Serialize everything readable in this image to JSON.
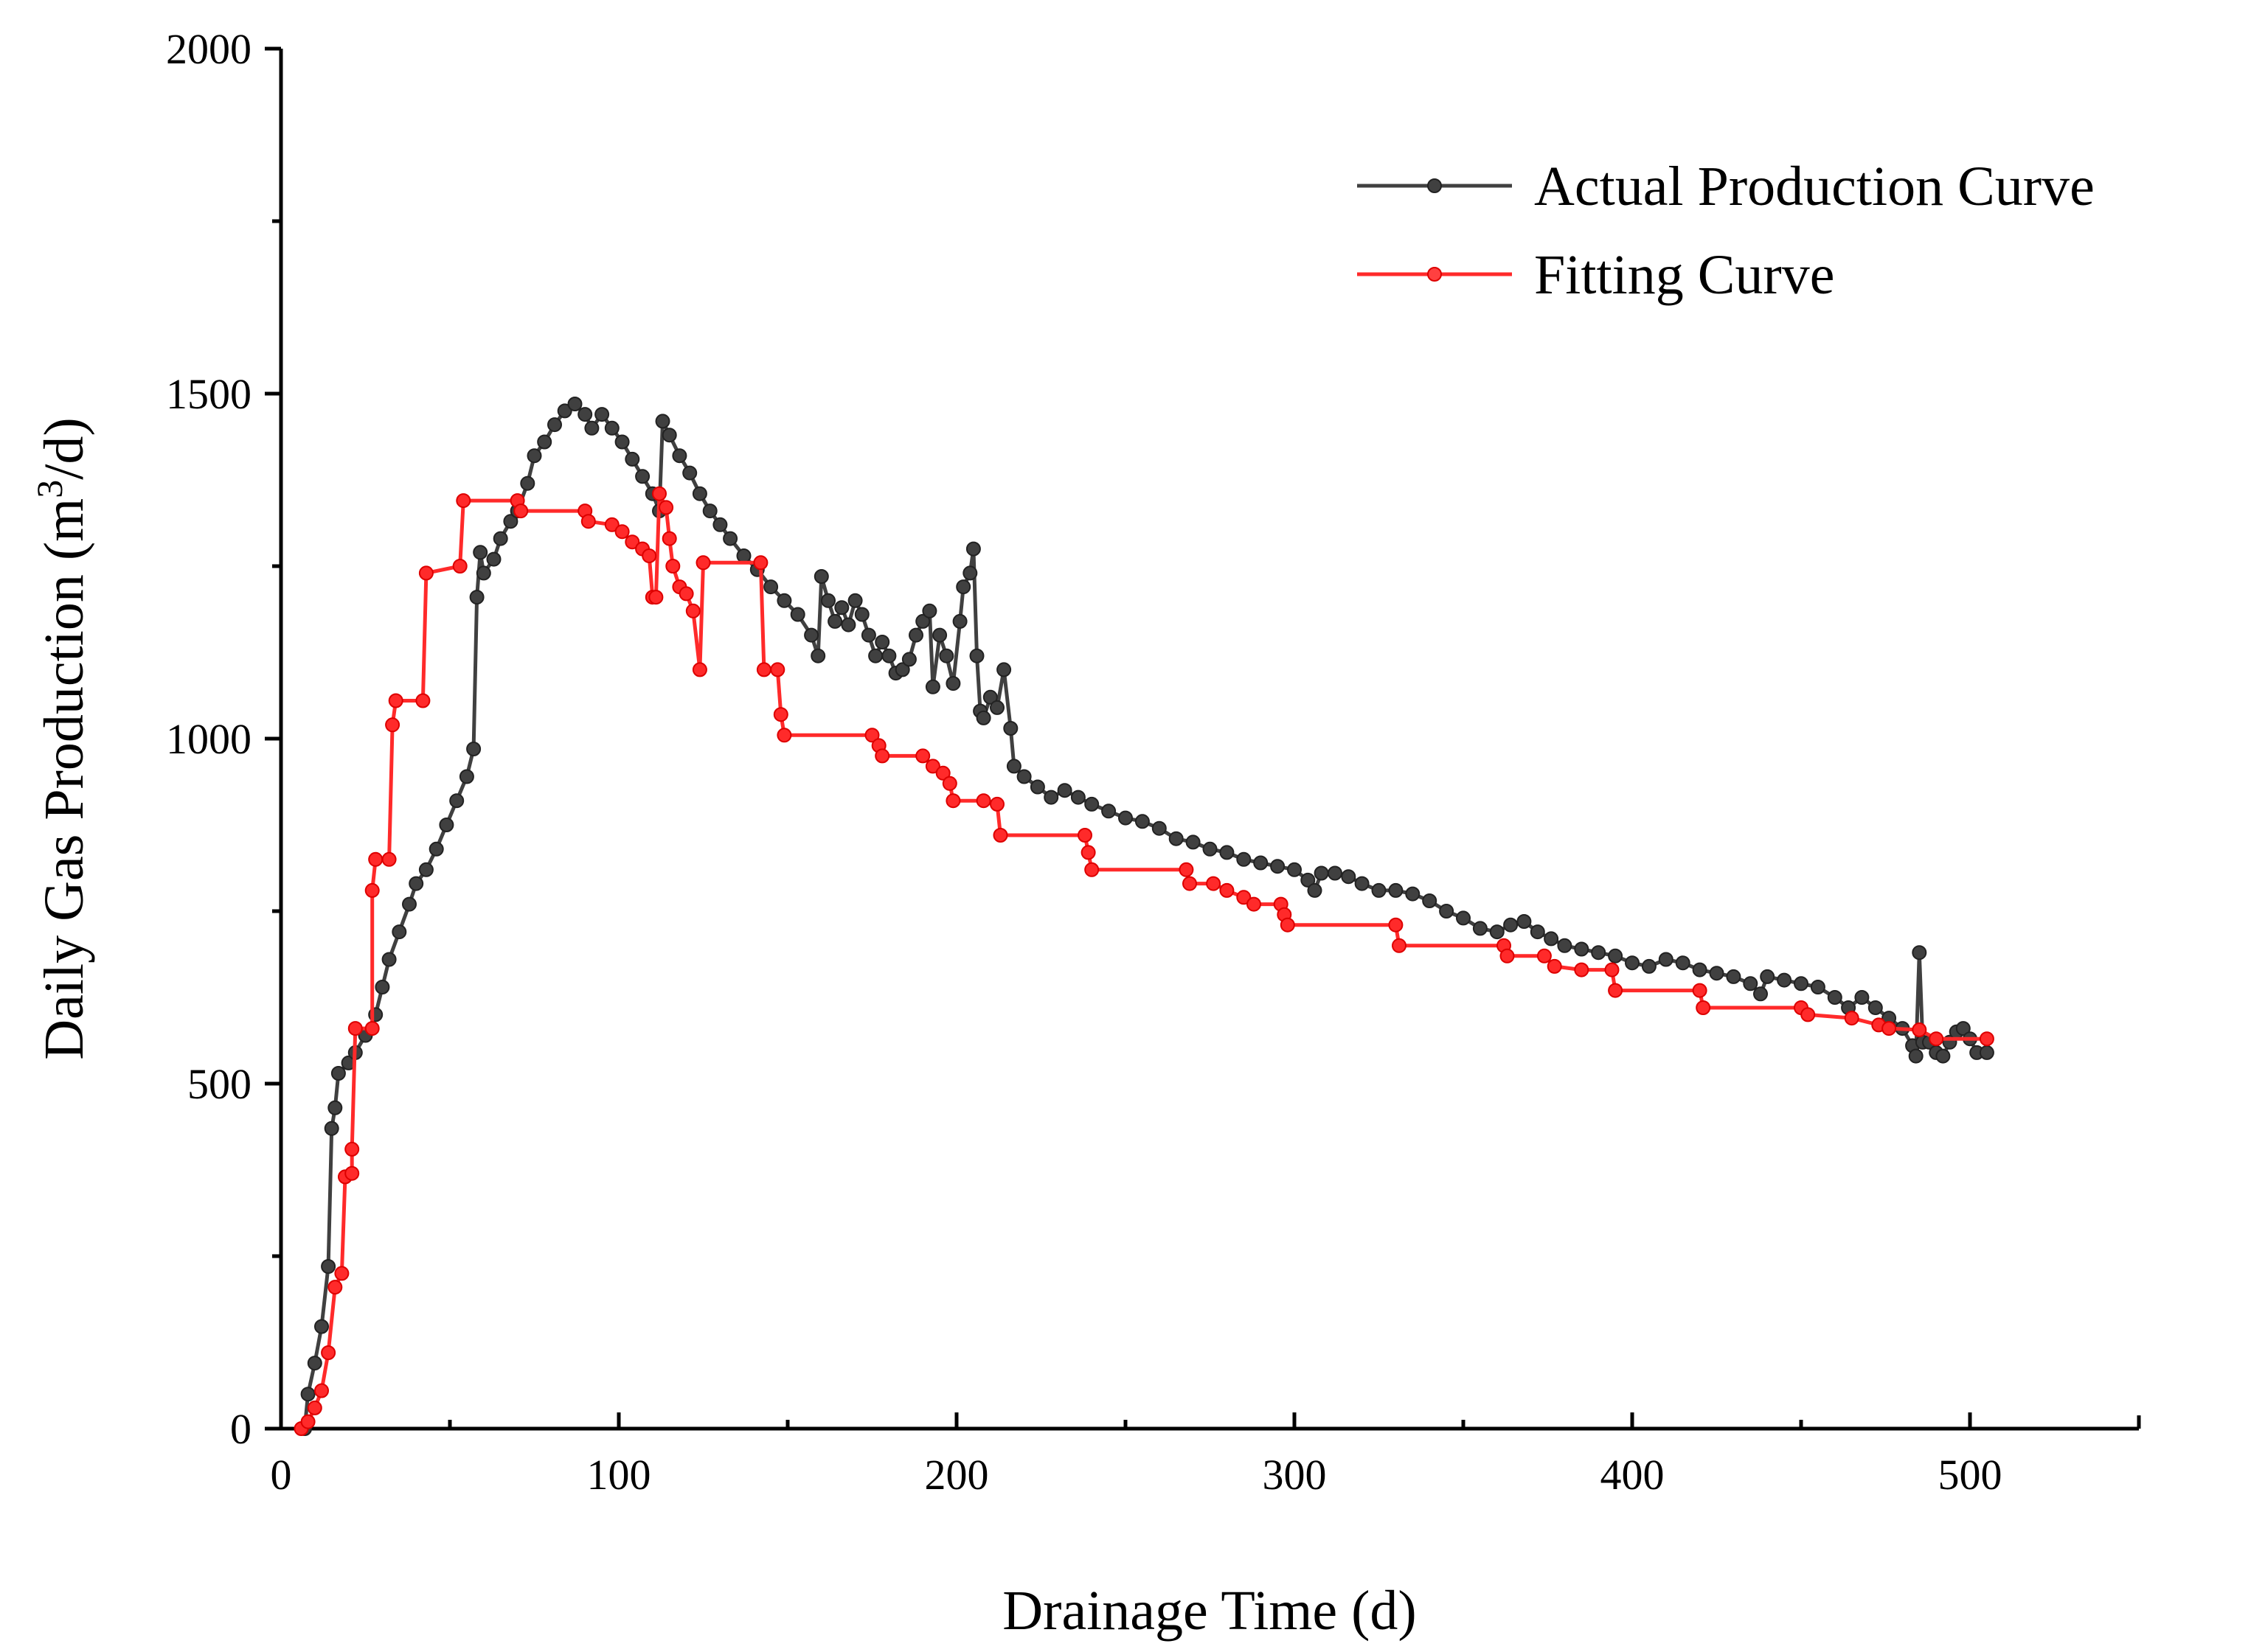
{
  "chart_data": {
    "type": "line",
    "xlabel": "Drainage Time (d)",
    "ylabel_prefix": "Daily Gas Production (m",
    "ylabel_sup": "3",
    "ylabel_suffix": "/d)",
    "xlim": [
      0,
      550
    ],
    "ylim": [
      0,
      2000
    ],
    "xticks": [
      0,
      100,
      200,
      300,
      400,
      500
    ],
    "xtick_labels": [
      "0",
      "100",
      "200",
      "300",
      "400",
      "500"
    ],
    "yticks": [
      0,
      500,
      1000,
      1500,
      2000
    ],
    "ytick_labels": [
      "0",
      "500",
      "1000",
      "1500",
      "2000"
    ],
    "legend_position": "top-right",
    "series": [
      {
        "name": "Actual Production Curve",
        "color": "#404040",
        "points": [
          [
            7,
            0
          ],
          [
            8,
            50
          ],
          [
            10,
            95
          ],
          [
            12,
            148
          ],
          [
            14,
            235
          ],
          [
            15,
            435
          ],
          [
            16,
            465
          ],
          [
            17,
            515
          ],
          [
            20,
            530
          ],
          [
            22,
            545
          ],
          [
            25,
            570
          ],
          [
            28,
            600
          ],
          [
            30,
            640
          ],
          [
            32,
            680
          ],
          [
            35,
            720
          ],
          [
            38,
            760
          ],
          [
            40,
            790
          ],
          [
            43,
            810
          ],
          [
            46,
            840
          ],
          [
            49,
            875
          ],
          [
            52,
            910
          ],
          [
            55,
            945
          ],
          [
            57,
            985
          ],
          [
            58,
            1205
          ],
          [
            59,
            1270
          ],
          [
            60,
            1240
          ],
          [
            63,
            1260
          ],
          [
            65,
            1290
          ],
          [
            68,
            1315
          ],
          [
            70,
            1330
          ],
          [
            73,
            1370
          ],
          [
            75,
            1410
          ],
          [
            78,
            1430
          ],
          [
            81,
            1455
          ],
          [
            84,
            1475
          ],
          [
            87,
            1485
          ],
          [
            90,
            1470
          ],
          [
            92,
            1450
          ],
          [
            95,
            1470
          ],
          [
            98,
            1450
          ],
          [
            101,
            1430
          ],
          [
            104,
            1405
          ],
          [
            107,
            1380
          ],
          [
            110,
            1355
          ],
          [
            112,
            1330
          ],
          [
            113,
            1460
          ],
          [
            115,
            1440
          ],
          [
            118,
            1410
          ],
          [
            121,
            1385
          ],
          [
            124,
            1355
          ],
          [
            127,
            1330
          ],
          [
            130,
            1310
          ],
          [
            133,
            1290
          ],
          [
            137,
            1265
          ],
          [
            141,
            1245
          ],
          [
            145,
            1220
          ],
          [
            149,
            1200
          ],
          [
            153,
            1180
          ],
          [
            157,
            1150
          ],
          [
            159,
            1120
          ],
          [
            160,
            1235
          ],
          [
            162,
            1200
          ],
          [
            164,
            1170
          ],
          [
            166,
            1190
          ],
          [
            168,
            1165
          ],
          [
            170,
            1200
          ],
          [
            172,
            1180
          ],
          [
            174,
            1150
          ],
          [
            176,
            1120
          ],
          [
            178,
            1140
          ],
          [
            180,
            1120
          ],
          [
            182,
            1095
          ],
          [
            184,
            1100
          ],
          [
            186,
            1115
          ],
          [
            188,
            1150
          ],
          [
            190,
            1170
          ],
          [
            192,
            1185
          ],
          [
            193,
            1075
          ],
          [
            195,
            1150
          ],
          [
            197,
            1120
          ],
          [
            199,
            1080
          ],
          [
            201,
            1170
          ],
          [
            202,
            1220
          ],
          [
            204,
            1240
          ],
          [
            205,
            1275
          ],
          [
            206,
            1120
          ],
          [
            207,
            1040
          ],
          [
            208,
            1030
          ],
          [
            210,
            1060
          ],
          [
            212,
            1045
          ],
          [
            214,
            1100
          ],
          [
            216,
            1015
          ],
          [
            217,
            960
          ],
          [
            220,
            945
          ],
          [
            224,
            930
          ],
          [
            228,
            915
          ],
          [
            232,
            925
          ],
          [
            236,
            915
          ],
          [
            240,
            905
          ],
          [
            245,
            895
          ],
          [
            250,
            885
          ],
          [
            255,
            880
          ],
          [
            260,
            870
          ],
          [
            265,
            855
          ],
          [
            270,
            850
          ],
          [
            275,
            840
          ],
          [
            280,
            835
          ],
          [
            285,
            825
          ],
          [
            290,
            820
          ],
          [
            295,
            815
          ],
          [
            300,
            810
          ],
          [
            304,
            795
          ],
          [
            306,
            780
          ],
          [
            308,
            805
          ],
          [
            312,
            805
          ],
          [
            316,
            800
          ],
          [
            320,
            790
          ],
          [
            325,
            780
          ],
          [
            330,
            780
          ],
          [
            335,
            775
          ],
          [
            340,
            765
          ],
          [
            345,
            750
          ],
          [
            350,
            740
          ],
          [
            355,
            725
          ],
          [
            360,
            720
          ],
          [
            364,
            730
          ],
          [
            368,
            735
          ],
          [
            372,
            720
          ],
          [
            376,
            710
          ],
          [
            380,
            700
          ],
          [
            385,
            695
          ],
          [
            390,
            690
          ],
          [
            395,
            685
          ],
          [
            400,
            675
          ],
          [
            405,
            670
          ],
          [
            410,
            680
          ],
          [
            415,
            675
          ],
          [
            420,
            665
          ],
          [
            425,
            660
          ],
          [
            430,
            655
          ],
          [
            435,
            645
          ],
          [
            438,
            630
          ],
          [
            440,
            655
          ],
          [
            445,
            650
          ],
          [
            450,
            645
          ],
          [
            455,
            640
          ],
          [
            460,
            625
          ],
          [
            464,
            610
          ],
          [
            468,
            625
          ],
          [
            472,
            610
          ],
          [
            476,
            595
          ],
          [
            480,
            580
          ],
          [
            483,
            555
          ],
          [
            484,
            540
          ],
          [
            485,
            690
          ],
          [
            486,
            560
          ],
          [
            488,
            560
          ],
          [
            490,
            545
          ],
          [
            492,
            540
          ],
          [
            494,
            560
          ],
          [
            496,
            575
          ],
          [
            498,
            580
          ],
          [
            500,
            565
          ],
          [
            502,
            545
          ],
          [
            505,
            545
          ]
        ]
      },
      {
        "name": "Fitting Curve",
        "color": "#ff2a2a",
        "points": [
          [
            6,
            0
          ],
          [
            8,
            10
          ],
          [
            10,
            30
          ],
          [
            12,
            55
          ],
          [
            14,
            110
          ],
          [
            16,
            205
          ],
          [
            18,
            225
          ],
          [
            19,
            365
          ],
          [
            21,
            370
          ],
          [
            21,
            405
          ],
          [
            22,
            580
          ],
          [
            27,
            580
          ],
          [
            27,
            780
          ],
          [
            28,
            825
          ],
          [
            32,
            825
          ],
          [
            33,
            1020
          ],
          [
            34,
            1055
          ],
          [
            42,
            1055
          ],
          [
            43,
            1240
          ],
          [
            53,
            1250
          ],
          [
            54,
            1345
          ],
          [
            70,
            1345
          ],
          [
            71,
            1330
          ],
          [
            90,
            1330
          ],
          [
            91,
            1315
          ],
          [
            98,
            1310
          ],
          [
            101,
            1300
          ],
          [
            104,
            1285
          ],
          [
            107,
            1275
          ],
          [
            109,
            1265
          ],
          [
            110,
            1205
          ],
          [
            111,
            1205
          ],
          [
            112,
            1355
          ],
          [
            114,
            1335
          ],
          [
            115,
            1290
          ],
          [
            116,
            1250
          ],
          [
            118,
            1220
          ],
          [
            120,
            1210
          ],
          [
            122,
            1185
          ],
          [
            124,
            1100
          ],
          [
            125,
            1255
          ],
          [
            142,
            1255
          ],
          [
            143,
            1100
          ],
          [
            147,
            1100
          ],
          [
            148,
            1035
          ],
          [
            149,
            1005
          ],
          [
            175,
            1005
          ],
          [
            177,
            990
          ],
          [
            178,
            975
          ],
          [
            190,
            975
          ],
          [
            193,
            960
          ],
          [
            196,
            950
          ],
          [
            198,
            935
          ],
          [
            199,
            910
          ],
          [
            208,
            910
          ],
          [
            212,
            905
          ],
          [
            213,
            860
          ],
          [
            238,
            860
          ],
          [
            239,
            835
          ],
          [
            240,
            810
          ],
          [
            268,
            810
          ],
          [
            269,
            790
          ],
          [
            276,
            790
          ],
          [
            280,
            780
          ],
          [
            285,
            770
          ],
          [
            288,
            760
          ],
          [
            296,
            760
          ],
          [
            297,
            745
          ],
          [
            298,
            730
          ],
          [
            330,
            730
          ],
          [
            331,
            700
          ],
          [
            362,
            700
          ],
          [
            363,
            685
          ],
          [
            374,
            685
          ],
          [
            377,
            670
          ],
          [
            385,
            665
          ],
          [
            394,
            665
          ],
          [
            395,
            635
          ],
          [
            420,
            635
          ],
          [
            421,
            610
          ],
          [
            450,
            610
          ],
          [
            452,
            600
          ],
          [
            465,
            595
          ],
          [
            473,
            585
          ],
          [
            476,
            580
          ],
          [
            485,
            578
          ],
          [
            490,
            565
          ],
          [
            505,
            565
          ]
        ]
      }
    ]
  }
}
